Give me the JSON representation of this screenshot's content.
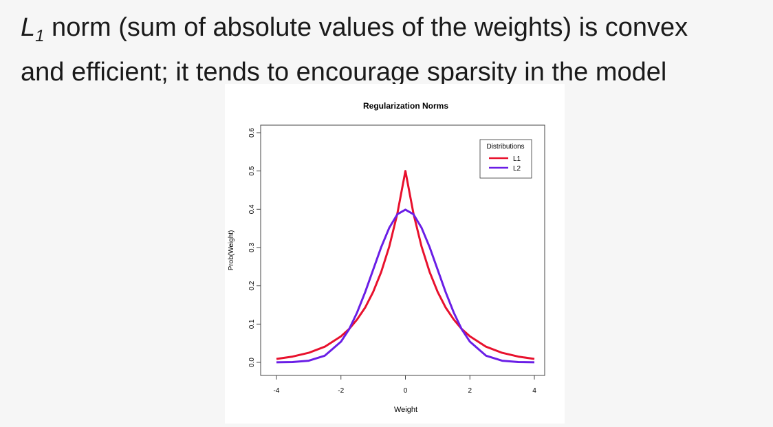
{
  "headline": {
    "symbol": "L",
    "subscript": "1",
    "line1_rest": " norm (sum of absolute values of the weights) is convex",
    "line2": "and efficient; it tends to encourage sparsity in the model"
  },
  "chart_data": {
    "type": "line",
    "title": "Regularization Norms",
    "xlabel": "Weight",
    "ylabel": "Prob(Weight)",
    "xlim": [
      -4,
      4
    ],
    "ylim": [
      0,
      0.6
    ],
    "xticks": [
      "-4",
      "-2",
      "0",
      "2",
      "4"
    ],
    "yticks": [
      "0.0",
      "0.1",
      "0.2",
      "0.3",
      "0.4",
      "0.5",
      "0.6"
    ],
    "grid": false,
    "legend": {
      "title": "Distributions",
      "position": "top-right"
    },
    "x": [
      -4,
      -3.5,
      -3,
      -2.5,
      -2,
      -1.75,
      -1.5,
      -1.25,
      -1,
      -0.75,
      -0.5,
      -0.25,
      0,
      0.25,
      0.5,
      0.75,
      1,
      1.25,
      1.5,
      1.75,
      2,
      2.5,
      3,
      3.5,
      4
    ],
    "series": [
      {
        "name": "L1",
        "color": "#e8112d",
        "values": [
          0.009,
          0.015,
          0.025,
          0.041,
          0.068,
          0.087,
          0.112,
          0.143,
          0.184,
          0.236,
          0.303,
          0.389,
          0.5,
          0.389,
          0.303,
          0.236,
          0.184,
          0.143,
          0.112,
          0.087,
          0.068,
          0.041,
          0.025,
          0.015,
          0.009
        ]
      },
      {
        "name": "L2",
        "color": "#6a1ee6",
        "values": [
          0.0001,
          0.0009,
          0.0044,
          0.0175,
          0.054,
          0.086,
          0.13,
          0.183,
          0.242,
          0.301,
          0.352,
          0.387,
          0.399,
          0.387,
          0.352,
          0.301,
          0.242,
          0.183,
          0.13,
          0.086,
          0.054,
          0.0175,
          0.0044,
          0.0009,
          0.0001
        ]
      }
    ]
  }
}
